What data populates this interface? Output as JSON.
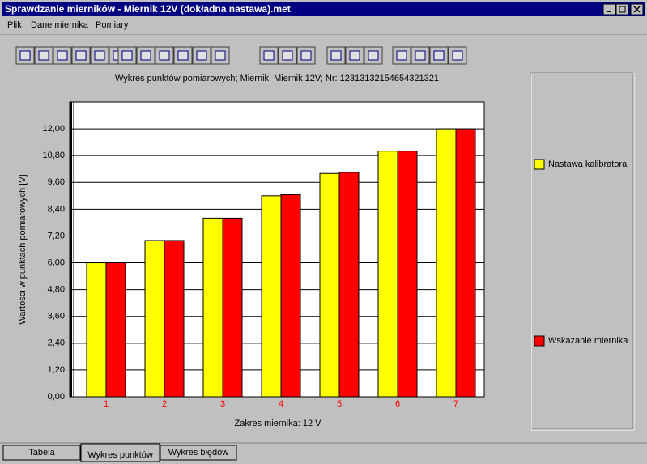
{
  "window": {
    "title": "Sprawdzanie mierników - Miernik 12V (dokładna nastawa).met"
  },
  "menu": [
    "Plik",
    "Dane miernika",
    "Pomiary"
  ],
  "tabs": [
    "Tabela",
    "Wykres punktów",
    "Wykres błędów"
  ],
  "chart_data": {
    "type": "bar",
    "title": "Wykres punktów pomiarowych;  Miernik: Miernik 12V; Nr: 12313132154654321321",
    "x_label": "Zakres miernika: 12 V",
    "y_label": "Wartości w punktach pomiarowych [V]",
    "categories": [
      "1",
      "2",
      "3",
      "4",
      "5",
      "6",
      "7"
    ],
    "series": [
      {
        "name": "Nastawa kalibratora",
        "color": "#ffff00",
        "values": [
          6,
          7,
          8,
          9,
          10,
          11,
          12
        ]
      },
      {
        "name": "Wskazanie miernika",
        "color": "#ff0000",
        "values": [
          6,
          7,
          8,
          9.05,
          10.05,
          11,
          12
        ]
      }
    ],
    "ylim": [
      0,
      13.2
    ],
    "yticks": [
      {
        "value": 0,
        "label": "0,00"
      },
      {
        "value": 1.2,
        "label": "1,20"
      },
      {
        "value": 2.4,
        "label": "2,40"
      },
      {
        "value": 3.6,
        "label": "3,60"
      },
      {
        "value": 4.8,
        "label": "4,80"
      },
      {
        "value": 6,
        "label": "6,00"
      },
      {
        "value": 7.2,
        "label": "7,20"
      },
      {
        "value": 8.4,
        "label": "8,40"
      },
      {
        "value": 9.6,
        "label": "9,60"
      },
      {
        "value": 10.8,
        "label": "10,80"
      },
      {
        "value": 12,
        "label": "12,00"
      }
    ],
    "grid": true
  }
}
